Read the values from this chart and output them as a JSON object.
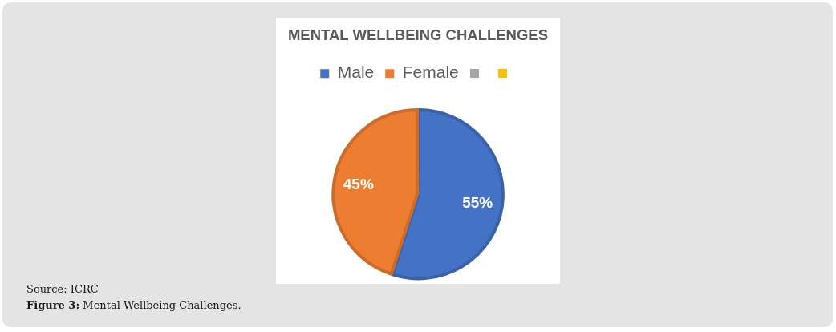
{
  "chart_data": {
    "type": "pie",
    "title": "MENTAL WELLBEING CHALLENGES",
    "categories": [
      "Male",
      "Female",
      null,
      null
    ],
    "values": [
      55,
      45,
      0,
      0
    ],
    "colors": [
      "#4472c4",
      "#ed7d31",
      "#a5a5a5",
      "#ffc000"
    ],
    "value_labels": [
      "55%",
      "45%",
      null,
      null
    ],
    "legend": "top",
    "annotations": [
      "Source: ICRC",
      "Figure 3: Mental Wellbeing Challenges."
    ]
  }
}
